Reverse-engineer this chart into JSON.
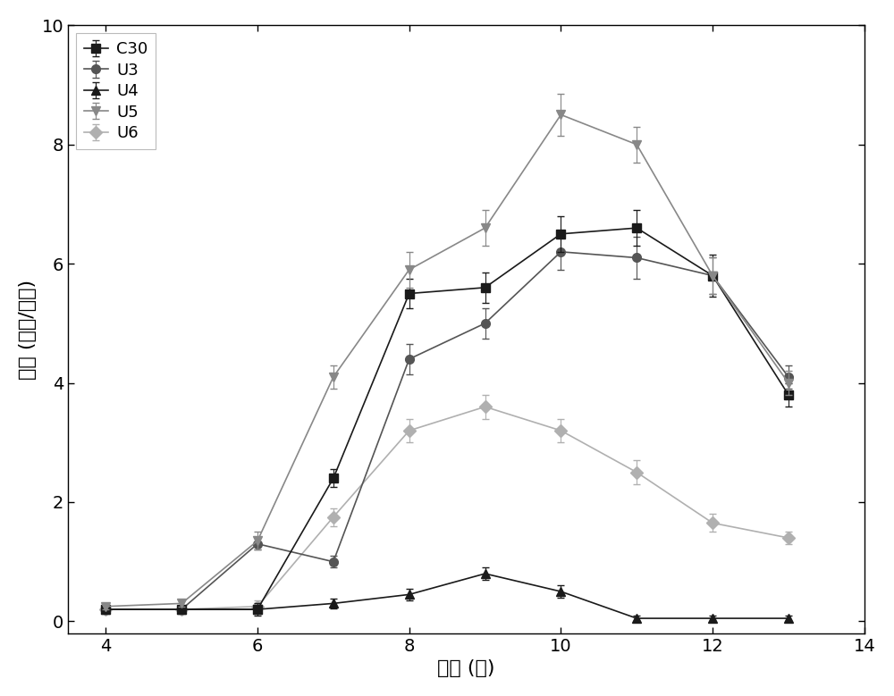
{
  "x": [
    4,
    5,
    6,
    7,
    8,
    9,
    10,
    11,
    12,
    13
  ],
  "C30": [
    0.2,
    0.2,
    0.2,
    2.4,
    5.5,
    5.6,
    6.5,
    6.6,
    5.8,
    3.8
  ],
  "C30_err": [
    0.05,
    0.05,
    0.05,
    0.15,
    0.25,
    0.25,
    0.3,
    0.3,
    0.35,
    0.2
  ],
  "U3": [
    0.2,
    0.2,
    1.3,
    1.0,
    4.4,
    5.0,
    6.2,
    6.1,
    5.8,
    4.1
  ],
  "U3_err": [
    0.05,
    0.05,
    0.1,
    0.1,
    0.25,
    0.25,
    0.3,
    0.35,
    0.3,
    0.2
  ],
  "U4": [
    0.2,
    0.2,
    0.2,
    0.3,
    0.45,
    0.8,
    0.5,
    0.05,
    0.05,
    0.05
  ],
  "U4_err": [
    0.05,
    0.05,
    0.1,
    0.08,
    0.1,
    0.1,
    0.1,
    0.05,
    0.05,
    0.05
  ],
  "U5": [
    0.25,
    0.3,
    1.35,
    4.1,
    5.9,
    6.6,
    8.5,
    8.0,
    5.8,
    4.0
  ],
  "U5_err": [
    0.05,
    0.05,
    0.15,
    0.2,
    0.3,
    0.3,
    0.35,
    0.3,
    0.3,
    0.2
  ],
  "U6": [
    0.2,
    0.2,
    0.25,
    1.75,
    3.2,
    3.6,
    3.2,
    2.5,
    1.65,
    1.4
  ],
  "U6_err": [
    0.05,
    0.05,
    0.1,
    0.15,
    0.2,
    0.2,
    0.2,
    0.2,
    0.15,
    0.1
  ],
  "xlabel": "时间 (天)",
  "ylabel": "活力 (单位/毫升)",
  "xlim": [
    3.5,
    14
  ],
  "ylim": [
    -0.2,
    10
  ],
  "xticks": [
    4,
    6,
    8,
    10,
    12,
    14
  ],
  "yticks": [
    0,
    2,
    4,
    6,
    8,
    10
  ],
  "line_color_light": "#c8c8c8",
  "marker_color_dark": "#1a1a1a",
  "marker_color_mid": "#555555",
  "marker_color_light": "#888888",
  "label_fontsize": 16,
  "tick_fontsize": 14,
  "legend_fontsize": 13
}
